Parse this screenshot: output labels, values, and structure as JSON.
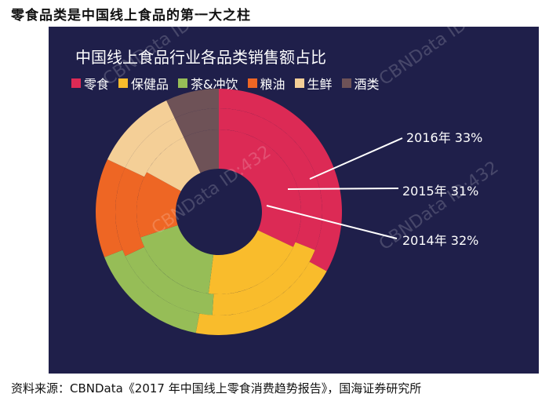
{
  "heading": "零食品类是中国线上食品的第一大之柱",
  "source": "资料来源：CBNData《2017 年中国线上零食消费趋势报告》，国海证券研究所",
  "watermark": "CBNData ID:432",
  "chart_data": {
    "type": "pie",
    "variant": "nested-donut",
    "title": "中国线上食品行业各品类销售额占比",
    "legend_placement": "top-left",
    "categories": [
      "零食",
      "保健品",
      "茶&冲饮",
      "粮油",
      "生鲜",
      "酒类"
    ],
    "colors": [
      "#dc2a55",
      "#f9bc2c",
      "#96bd57",
      "#ee6624",
      "#f4cf97",
      "#6e5257"
    ],
    "rings": [
      {
        "name": "2014年",
        "values": [
          32,
          20,
          18,
          13,
          10,
          7
        ]
      },
      {
        "name": "2015年",
        "values": [
          31,
          20,
          17,
          14,
          11,
          7
        ]
      },
      {
        "name": "2016年",
        "values": [
          33,
          20,
          16,
          13,
          11,
          7
        ]
      }
    ],
    "annotations": [
      {
        "ring": "2016年",
        "label": "2016年 33%"
      },
      {
        "ring": "2015年",
        "label": "2015年 31%"
      },
      {
        "ring": "2014年",
        "label": "2014年 32%"
      }
    ]
  }
}
